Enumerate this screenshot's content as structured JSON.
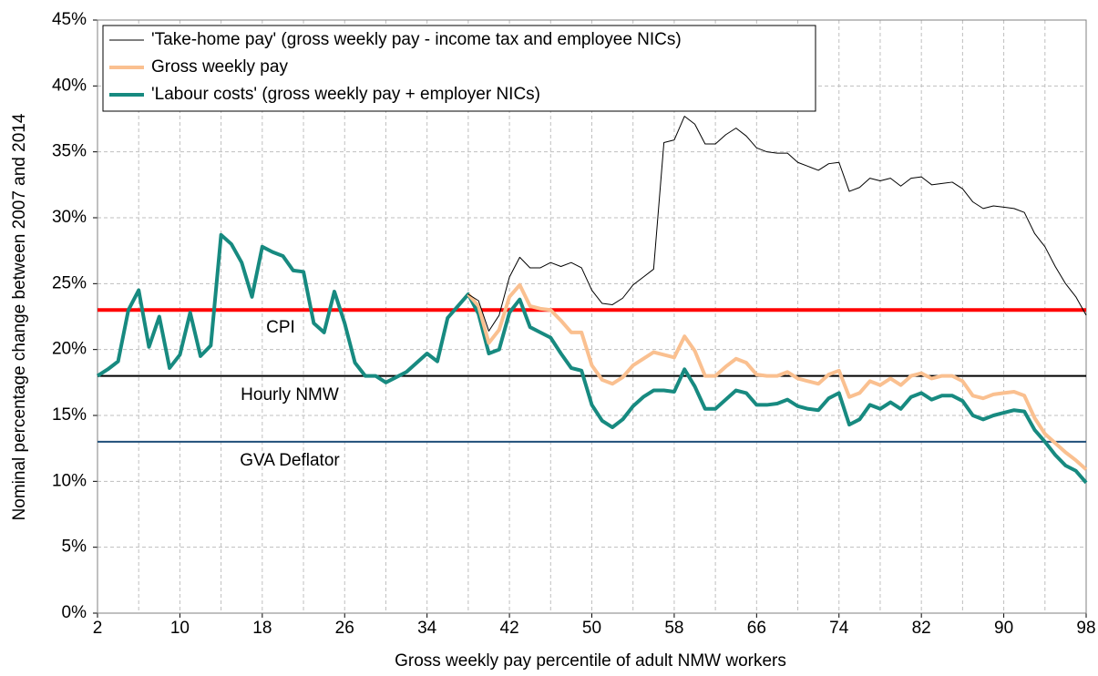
{
  "chart_data": {
    "type": "line",
    "x_label": "Gross weekly pay percentile of adult NMW workers",
    "y_label": "Nominal percentage change between 2007 and 2014",
    "x": [
      2,
      3,
      4,
      5,
      6,
      7,
      8,
      9,
      10,
      11,
      12,
      13,
      14,
      15,
      16,
      17,
      18,
      19,
      20,
      21,
      22,
      23,
      24,
      25,
      26,
      27,
      28,
      29,
      30,
      31,
      32,
      33,
      34,
      35,
      36,
      37,
      38,
      39,
      40,
      41,
      42,
      43,
      44,
      45,
      46,
      47,
      48,
      49,
      50,
      51,
      52,
      53,
      54,
      55,
      56,
      57,
      58,
      59,
      60,
      61,
      62,
      63,
      64,
      65,
      66,
      67,
      68,
      69,
      70,
      71,
      72,
      73,
      74,
      75,
      76,
      77,
      78,
      79,
      80,
      81,
      82,
      83,
      84,
      85,
      86,
      87,
      88,
      89,
      90,
      91,
      92,
      93,
      94,
      95,
      96,
      97,
      98
    ],
    "series": [
      {
        "name": "'Take-home pay' (gross weekly pay - income tax and employee NICs)",
        "color": "#000000",
        "width": 1,
        "values": [
          null,
          null,
          null,
          null,
          null,
          null,
          null,
          null,
          null,
          null,
          null,
          null,
          null,
          null,
          null,
          null,
          null,
          null,
          null,
          null,
          null,
          null,
          null,
          null,
          null,
          null,
          null,
          null,
          null,
          null,
          null,
          null,
          null,
          null,
          null,
          null,
          24.2,
          23.7,
          21.4,
          22.6,
          25.5,
          27,
          26.2,
          26.2,
          26.6,
          26.3,
          26.6,
          26.2,
          24.5,
          23.5,
          23.4,
          23.9,
          24.9,
          25.5,
          26.1,
          35.7,
          35.9,
          37.7,
          37.1,
          35.6,
          35.6,
          36.3,
          36.8,
          36.2,
          35.3,
          35,
          34.9,
          34.9,
          34.2,
          33.9,
          33.6,
          34.1,
          34.2,
          32,
          32.3,
          33,
          32.8,
          33,
          32.4,
          33,
          33.1,
          32.5,
          32.6,
          32.7,
          32.2,
          31.2,
          30.7,
          30.9,
          30.8,
          30.7,
          30.4,
          28.8,
          27.8,
          26.3,
          25,
          24,
          22.6
        ]
      },
      {
        "name": "Gross weekly pay",
        "color": "#fac090",
        "width": 4,
        "values": [
          null,
          null,
          null,
          null,
          null,
          null,
          null,
          null,
          null,
          null,
          null,
          null,
          null,
          null,
          null,
          null,
          null,
          null,
          null,
          null,
          null,
          null,
          null,
          null,
          null,
          null,
          null,
          null,
          null,
          null,
          null,
          null,
          null,
          null,
          null,
          null,
          24.2,
          23.3,
          20.5,
          21.5,
          24,
          24.9,
          23.3,
          23.1,
          23,
          22.2,
          21.3,
          21.3,
          18.8,
          17.7,
          17.4,
          17.9,
          18.8,
          19.3,
          19.8,
          19.6,
          19.4,
          21,
          19.9,
          18,
          18,
          18.7,
          19.3,
          19,
          18.1,
          18,
          18,
          18.3,
          17.8,
          17.6,
          17.4,
          18.1,
          18.4,
          16.4,
          16.7,
          17.6,
          17.3,
          17.8,
          17.3,
          18,
          18.2,
          17.8,
          18,
          18,
          17.6,
          16.5,
          16.3,
          16.6,
          16.7,
          16.8,
          16.5,
          14.8,
          13.6,
          12.9,
          12.2,
          11.6,
          10.9
        ]
      },
      {
        "name": "'Labour costs' (gross weekly pay + employer NICs)",
        "color": "#178a80",
        "width": 4,
        "values": [
          18,
          18.5,
          19.1,
          23,
          24.5,
          20.2,
          22.5,
          18.6,
          19.6,
          22.8,
          19.5,
          20.3,
          28.7,
          28,
          26.6,
          24,
          27.8,
          27.4,
          27.1,
          26,
          25.9,
          22,
          21.3,
          24.4,
          22,
          19,
          18,
          18,
          17.5,
          17.9,
          18.3,
          19,
          19.7,
          19.1,
          22.4,
          23.3,
          24.2,
          22.7,
          19.7,
          20,
          22.8,
          23.8,
          21.7,
          21.3,
          20.9,
          19.7,
          18.6,
          18.4,
          15.8,
          14.6,
          14.1,
          14.7,
          15.7,
          16.4,
          16.9,
          16.9,
          16.8,
          18.5,
          17.2,
          15.5,
          15.5,
          16.2,
          16.9,
          16.7,
          15.8,
          15.8,
          15.9,
          16.2,
          15.7,
          15.5,
          15.4,
          16.3,
          16.7,
          14.3,
          14.7,
          15.8,
          15.5,
          16,
          15.5,
          16.4,
          16.7,
          16.2,
          16.5,
          16.5,
          16.1,
          15,
          14.7,
          15,
          15.2,
          15.4,
          15.3,
          13.9,
          13,
          12,
          11.2,
          10.8,
          9.9
        ]
      }
    ],
    "reference_lines": [
      {
        "label": "CPI",
        "value": 23,
        "color": "#ff0000"
      },
      {
        "label": "Hourly NMW",
        "value": 18,
        "color": "#000000"
      },
      {
        "label": "GVA Deflator",
        "value": 13,
        "color": "#1f4e79"
      }
    ],
    "xlim": [
      2,
      98
    ],
    "xticks": [
      2,
      10,
      18,
      26,
      34,
      42,
      50,
      58,
      66,
      74,
      82,
      90,
      98
    ],
    "xgrid": [
      2,
      6,
      10,
      14,
      18,
      22,
      26,
      30,
      34,
      38,
      42,
      46,
      50,
      54,
      58,
      62,
      66,
      70,
      74,
      78,
      82,
      86,
      90,
      94,
      98
    ],
    "ylim": [
      0,
      45
    ],
    "yticks": [
      {
        "value": 0,
        "label": "0%"
      },
      {
        "value": 5,
        "label": "5%"
      },
      {
        "value": 10,
        "label": "10%"
      },
      {
        "value": 15,
        "label": "15%"
      },
      {
        "value": 20,
        "label": "20%"
      },
      {
        "value": 25,
        "label": "25%"
      },
      {
        "value": 30,
        "label": "30%"
      },
      {
        "value": 35,
        "label": "35%"
      },
      {
        "value": 40,
        "label": "40%"
      },
      {
        "value": 45,
        "label": "45%"
      }
    ],
    "grid": true,
    "legend": "top-left"
  }
}
